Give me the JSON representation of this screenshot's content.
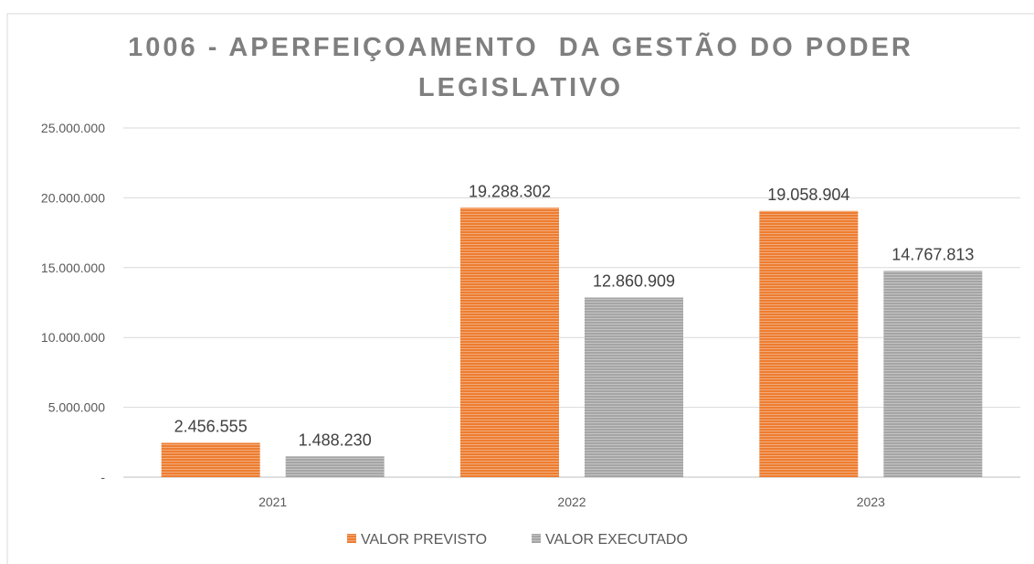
{
  "chart_data": {
    "type": "bar",
    "title": "1006 - APERFEIÇOAMENTO  DA GESTÃO DO PODER LEGISLATIVO",
    "categories": [
      "2021",
      "2022",
      "2023"
    ],
    "series": [
      {
        "name": "VALOR PREVISTO",
        "color": "#ed7d31",
        "values": [
          2456555,
          19288302,
          19058904
        ],
        "value_labels": [
          "2.456.555",
          "19.288.302",
          "19.058.904"
        ]
      },
      {
        "name": "VALOR EXECUTADO",
        "color": "#a5a5a5",
        "values": [
          1488230,
          12860909,
          14767813
        ],
        "value_labels": [
          "1.488.230",
          "12.860.909",
          "14.767.813"
        ]
      }
    ],
    "ylim": [
      0,
      25000000
    ],
    "yticks": [
      {
        "value": 0,
        "label": "-"
      },
      {
        "value": 5000000,
        "label": "5.000.000"
      },
      {
        "value": 10000000,
        "label": "10.000.000"
      },
      {
        "value": 15000000,
        "label": "15.000.000"
      },
      {
        "value": 20000000,
        "label": "20.000.000"
      },
      {
        "value": 25000000,
        "label": "25.000.000"
      }
    ],
    "grid": true,
    "legend": "bottom"
  }
}
